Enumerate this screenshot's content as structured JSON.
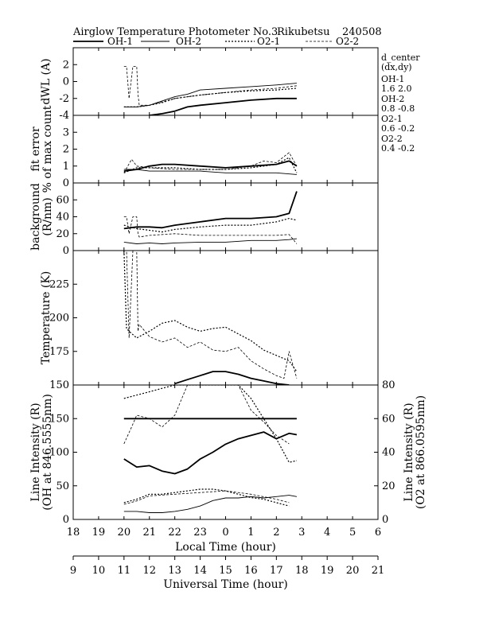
{
  "header": {
    "title": "Airglow Temperature Photometer No.3",
    "site": "Rikubetsu",
    "date": "240508"
  },
  "legend": [
    {
      "name": "OH-1",
      "style": "solid"
    },
    {
      "name": "OH-2",
      "style": "solid-thin"
    },
    {
      "name": "O2-1",
      "style": "dotted"
    },
    {
      "name": "O2-2",
      "style": "dashed"
    }
  ],
  "side_info": {
    "heading": "d_center",
    "subheading": "(dx,dy)",
    "items": [
      {
        "name": "OH-1",
        "value": "1.6   2.0"
      },
      {
        "name": "OH-2",
        "value": "0.8   -0.8"
      },
      {
        "name": "O2-1",
        "value": "0.6   -0.2"
      },
      {
        "name": "O2-2",
        "value": "0.4   -0.2"
      }
    ]
  },
  "axes": {
    "local_time_label": "Local Time (hour)",
    "local_time_ticks": [
      "18",
      "19",
      "20",
      "21",
      "22",
      "23",
      "0",
      "1",
      "2",
      "3",
      "4",
      "5",
      "6"
    ],
    "universal_time_label": "Universal Time (hour)",
    "universal_time_ticks": [
      "9",
      "10",
      "11",
      "12",
      "13",
      "14",
      "15",
      "16",
      "17",
      "18",
      "19",
      "20",
      "21"
    ]
  },
  "chart_data": [
    {
      "type": "line",
      "panel": "dwl",
      "ylabel": "dWL (A)",
      "ylim": [
        -4,
        4
      ],
      "yticks": [
        "-4",
        "-2",
        "0",
        "2"
      ],
      "x_unit": "Universal Time (hour)",
      "series": [
        {
          "name": "OH-1",
          "x": [
            12.0,
            12.5,
            13.0,
            13.5,
            14.0,
            15.0,
            16.0,
            17.0,
            17.8
          ],
          "y": [
            -4.0,
            -3.8,
            -3.5,
            -3.0,
            -2.8,
            -2.5,
            -2.2,
            -2.0,
            -2.0
          ]
        },
        {
          "name": "OH-2",
          "x": [
            11.0,
            11.5,
            12.0,
            12.5,
            13.0,
            13.5,
            14.0,
            15.0,
            16.0,
            17.0,
            17.8
          ],
          "y": [
            -3.0,
            -3.0,
            -2.8,
            -2.3,
            -1.8,
            -1.5,
            -1.0,
            -0.8,
            -0.6,
            -0.4,
            -0.2
          ]
        },
        {
          "name": "O2-1",
          "x": [
            11.0,
            11.5,
            12.0,
            12.5,
            13.0,
            14.0,
            15.0,
            16.0,
            17.0,
            17.8
          ],
          "y": [
            -3.0,
            -3.0,
            -2.8,
            -2.5,
            -2.0,
            -1.6,
            -1.3,
            -1.1,
            -1.0,
            -0.8
          ]
        },
        {
          "name": "O2-2",
          "x": [
            11.0,
            11.1,
            11.2,
            11.35,
            11.5,
            11.55,
            11.6,
            12.0,
            12.5,
            13.0,
            14.0,
            15.0,
            16.0,
            17.0,
            17.8
          ],
          "y": [
            1.8,
            1.8,
            -2.0,
            1.8,
            1.8,
            -1.5,
            -2.8,
            -2.8,
            -2.4,
            -2.0,
            -1.6,
            -1.3,
            -1.0,
            -0.8,
            -0.5
          ]
        }
      ]
    },
    {
      "type": "line",
      "panel": "fit_error",
      "ylabel": "fit error",
      "ylabel2": "% of max count",
      "ylim": [
        0,
        4
      ],
      "yticks": [
        "0",
        "1",
        "2",
        "3"
      ],
      "x_unit": "Universal Time (hour)",
      "series": [
        {
          "name": "OH-1",
          "x": [
            11.0,
            11.5,
            12.0,
            12.5,
            13.0,
            14.0,
            15.0,
            16.0,
            17.0,
            17.5,
            17.8
          ],
          "y": [
            0.7,
            0.8,
            1.0,
            1.1,
            1.1,
            1.0,
            0.9,
            1.0,
            1.1,
            1.3,
            1.0
          ]
        },
        {
          "name": "OH-2",
          "x": [
            11.0,
            11.5,
            12.0,
            13.0,
            14.0,
            15.0,
            16.0,
            17.0,
            17.8
          ],
          "y": [
            0.8,
            0.8,
            0.7,
            0.7,
            0.7,
            0.6,
            0.6,
            0.6,
            0.5
          ]
        },
        {
          "name": "O2-1",
          "x": [
            11.0,
            11.5,
            12.0,
            13.0,
            14.0,
            15.0,
            16.0,
            16.5,
            17.0,
            17.5,
            17.8
          ],
          "y": [
            0.6,
            0.9,
            0.9,
            0.9,
            0.8,
            0.8,
            0.9,
            1.0,
            1.1,
            1.5,
            0.6
          ]
        },
        {
          "name": "O2-2",
          "x": [
            11.0,
            11.3,
            11.5,
            12.0,
            13.0,
            14.0,
            15.0,
            16.0,
            16.5,
            17.0,
            17.5,
            17.8
          ],
          "y": [
            0.6,
            1.4,
            1.0,
            0.9,
            0.8,
            0.8,
            0.8,
            1.0,
            1.3,
            1.2,
            1.8,
            1.0
          ]
        }
      ]
    },
    {
      "type": "line",
      "panel": "background",
      "ylabel": "background",
      "ylabel2": "(R/nm)",
      "ylim": [
        0,
        80
      ],
      "yticks": [
        "0",
        "20",
        "40",
        "60"
      ],
      "x_unit": "Universal Time (hour)",
      "series": [
        {
          "name": "OH-1",
          "x": [
            11.0,
            11.5,
            12.0,
            12.5,
            13.0,
            14.0,
            15.0,
            16.0,
            17.0,
            17.5,
            17.8
          ],
          "y": [
            26,
            28,
            28,
            27,
            30,
            34,
            38,
            38,
            40,
            44,
            70
          ]
        },
        {
          "name": "OH-2",
          "x": [
            11.0,
            11.5,
            12.0,
            12.5,
            13.0,
            14.0,
            15.0,
            16.0,
            17.0,
            17.5,
            17.8
          ],
          "y": [
            10,
            8,
            9,
            8,
            9,
            10,
            10,
            12,
            12,
            13,
            14
          ]
        },
        {
          "name": "O2-1",
          "x": [
            11.0,
            11.5,
            12.0,
            12.5,
            13.0,
            14.0,
            15.0,
            16.0,
            17.0,
            17.5,
            17.8
          ],
          "y": [
            30,
            26,
            24,
            22,
            25,
            28,
            30,
            30,
            34,
            38,
            36
          ]
        },
        {
          "name": "O2-2",
          "x": [
            11.0,
            11.1,
            11.2,
            11.35,
            11.5,
            11.55,
            11.6,
            12.0,
            13.0,
            14.0,
            15.0,
            16.0,
            17.0,
            17.5,
            17.8
          ],
          "y": [
            40,
            40,
            20,
            40,
            40,
            20,
            16,
            18,
            20,
            18,
            18,
            18,
            18,
            19,
            8
          ]
        }
      ]
    },
    {
      "type": "line",
      "panel": "temperature",
      "ylabel": "Temperature (K)",
      "ylim": [
        150,
        250
      ],
      "yticks": [
        "150",
        "175",
        "200",
        "225"
      ],
      "x_unit": "Universal Time (hour)",
      "series": [
        {
          "name": "OH-1",
          "x": [
            13.0,
            13.5,
            14.0,
            14.5,
            15.0,
            15.5,
            16.0,
            16.5,
            17.0,
            17.5
          ],
          "y": [
            151,
            154,
            157,
            160,
            160,
            158,
            155,
            153,
            151,
            150
          ]
        },
        {
          "name": "O2-1",
          "x": [
            11.0,
            11.1,
            11.2,
            11.5,
            12.0,
            12.5,
            13.0,
            13.5,
            14.0,
            14.5,
            15.0,
            15.5,
            16.0,
            16.5,
            17.0,
            17.5,
            17.8
          ],
          "y": [
            250,
            192,
            190,
            185,
            190,
            196,
            198,
            193,
            190,
            192,
            193,
            188,
            183,
            176,
            172,
            168,
            160
          ]
        },
        {
          "name": "O2-2",
          "x": [
            11.0,
            11.1,
            11.2,
            11.35,
            11.5,
            11.55,
            11.6,
            12.0,
            12.5,
            13.0,
            13.5,
            14.0,
            14.5,
            15.0,
            15.5,
            16.0,
            16.5,
            17.0,
            17.3,
            17.5,
            17.8
          ],
          "y": [
            250,
            250,
            185,
            250,
            250,
            190,
            195,
            186,
            182,
            185,
            178,
            182,
            176,
            175,
            178,
            168,
            162,
            157,
            155,
            175,
            155
          ]
        }
      ]
    },
    {
      "type": "line",
      "panel": "intensity",
      "ylabel": "Line Intensity (R)",
      "ylabel2": "(OH at 846.5555nm)",
      "ylim": [
        0,
        200
      ],
      "yticks": [
        "0",
        "50",
        "100",
        "150"
      ],
      "y2label": "Line Intensity (R)",
      "y2label2": "(O2 at 866.0595nm)",
      "y2lim": [
        0,
        80
      ],
      "y2ticks": [
        "0",
        "20",
        "40",
        "60",
        "80"
      ],
      "x_unit": "Universal Time (hour)",
      "series": [
        {
          "name": "OH-1 (flat)",
          "axis": "left",
          "x": [
            11.0,
            11.5,
            17.8
          ],
          "y": [
            150,
            150,
            150
          ]
        },
        {
          "name": "OH-1",
          "axis": "left",
          "x": [
            11.0,
            11.5,
            12.0,
            12.5,
            13.0,
            13.5,
            14.0,
            14.5,
            15.0,
            15.5,
            16.0,
            16.5,
            17.0,
            17.5,
            17.8
          ],
          "y": [
            90,
            78,
            80,
            72,
            68,
            75,
            90,
            100,
            112,
            120,
            125,
            130,
            120,
            128,
            126
          ]
        },
        {
          "name": "OH-2",
          "axis": "left",
          "x": [
            11.0,
            11.5,
            12.0,
            12.5,
            13.0,
            13.5,
            14.0,
            14.5,
            15.0,
            15.5,
            16.0,
            16.5,
            17.0,
            17.5,
            17.8
          ],
          "y": [
            12,
            12,
            10,
            10,
            12,
            15,
            20,
            28,
            32,
            32,
            34,
            32,
            34,
            36,
            34
          ]
        },
        {
          "name": "O2-1",
          "axis": "right",
          "x": [
            11.0,
            11.5,
            12.0,
            12.5,
            13.0,
            13.5,
            14.0,
            14.5,
            15.0,
            15.5,
            16.0,
            16.5,
            17.0,
            17.5,
            17.8
          ],
          "y": [
            72,
            74,
            76,
            78,
            80,
            80,
            80,
            80,
            80,
            80,
            72,
            60,
            48,
            34,
            35
          ]
        },
        {
          "name": "O2-2",
          "axis": "right",
          "x": [
            11.0,
            11.3,
            11.5,
            12.0,
            12.5,
            13.0,
            13.5,
            14.0,
            14.5,
            15.0,
            15.5,
            16.0,
            16.5,
            17.0,
            17.5
          ],
          "y": [
            45,
            55,
            62,
            60,
            55,
            62,
            80,
            80,
            80,
            80,
            80,
            65,
            58,
            50,
            45
          ]
        },
        {
          "name": "O2-1 (low)",
          "axis": "right",
          "x": [
            11.0,
            11.5,
            12.0,
            12.5,
            13.0,
            13.5,
            14.0,
            14.5,
            15.0,
            15.5,
            16.0,
            16.5,
            17.0,
            17.5
          ],
          "y": [
            10,
            12,
            15,
            15,
            16,
            17,
            18,
            18,
            17,
            15,
            13,
            12,
            10,
            8
          ]
        },
        {
          "name": "O2-2 (low)",
          "axis": "right",
          "x": [
            11.0,
            11.5,
            12.0,
            13.0,
            14.0,
            15.0,
            16.0,
            17.0,
            17.5
          ],
          "y": [
            9,
            11,
            14,
            15,
            16,
            17,
            15,
            12,
            10
          ]
        }
      ]
    }
  ]
}
